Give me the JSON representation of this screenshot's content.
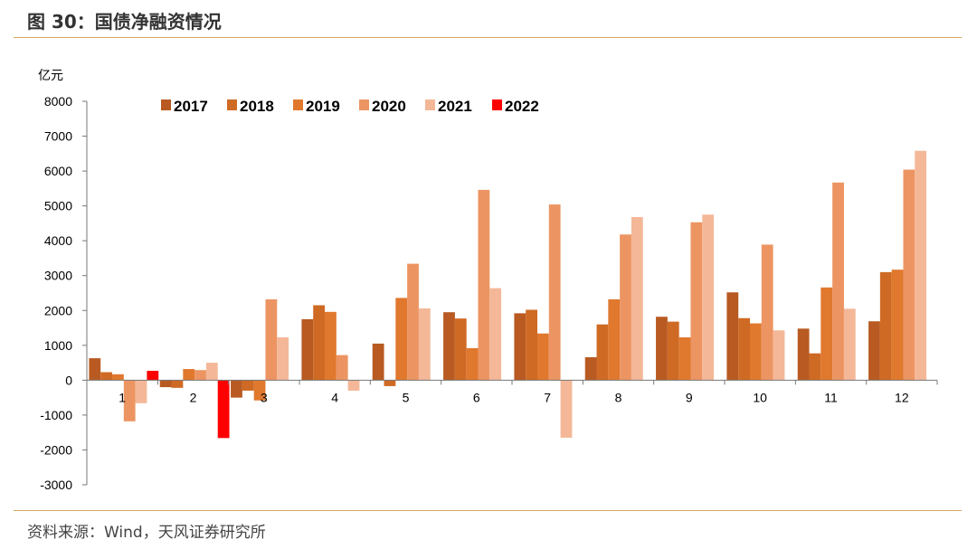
{
  "header": {
    "title": "图 30：国债净融资情况"
  },
  "footer": {
    "source": "资料来源：Wind，天风证券研究所"
  },
  "chart_data": {
    "type": "bar",
    "unit": "亿元",
    "categories": [
      "1",
      "2",
      "3",
      "4",
      "5",
      "6",
      "7",
      "8",
      "9",
      "10",
      "11",
      "12"
    ],
    "ylim": [
      -3000,
      8000
    ],
    "yticks": [
      -3000,
      -2000,
      -1000,
      0,
      1000,
      2000,
      3000,
      4000,
      5000,
      6000,
      7000,
      8000
    ],
    "grid": false,
    "legend_position": "top",
    "series": [
      {
        "name": "2017",
        "color": "#b85a22",
        "values": [
          630,
          -200,
          -500,
          1750,
          1050,
          1950,
          1920,
          660,
          1820,
          2520,
          1480,
          1690
        ]
      },
      {
        "name": "2018",
        "color": "#cf6a24",
        "values": [
          230,
          -220,
          -300,
          2150,
          -170,
          1770,
          2020,
          1600,
          1680,
          1780,
          770,
          3100
        ]
      },
      {
        "name": "2019",
        "color": "#e0782e",
        "values": [
          170,
          320,
          -580,
          1960,
          2360,
          920,
          1340,
          2320,
          1230,
          1630,
          2660,
          3170
        ]
      },
      {
        "name": "2020",
        "color": "#ec9563",
        "values": [
          -1180,
          290,
          2320,
          720,
          3340,
          5460,
          5040,
          4180,
          4530,
          3890,
          5670,
          6040
        ]
      },
      {
        "name": "2021",
        "color": "#f4b898",
        "values": [
          -660,
          500,
          1230,
          -300,
          2060,
          2640,
          -1650,
          4680,
          4750,
          1430,
          2050,
          6580
        ]
      },
      {
        "name": "2022",
        "color": "#ff0000",
        "values": [
          270,
          -1660,
          null,
          null,
          null,
          null,
          null,
          null,
          null,
          null,
          null,
          null
        ]
      }
    ]
  }
}
